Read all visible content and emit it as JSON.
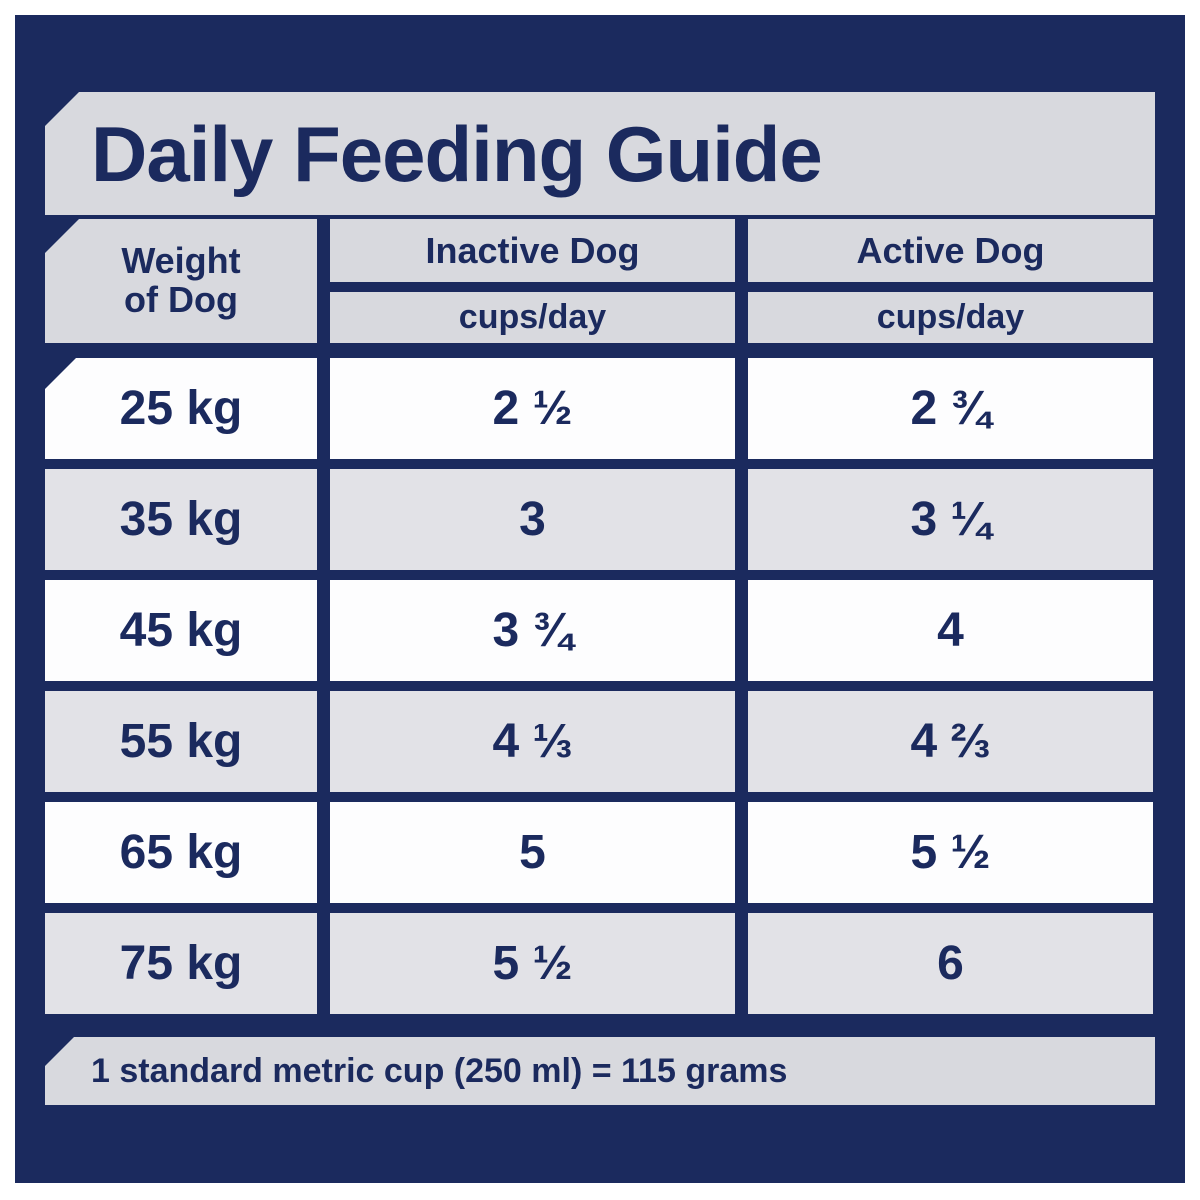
{
  "title": "Daily Feeding Guide",
  "header": {
    "weight_line1": "Weight",
    "weight_line2": "of Dog",
    "inactive_label": "Inactive Dog",
    "active_label": "Active Dog",
    "unit_label": "cups/day"
  },
  "rows": [
    {
      "weight": "25 kg",
      "inactive": "2 ½",
      "active": "2 ¾"
    },
    {
      "weight": "35 kg",
      "inactive": "3",
      "active": "3 ¼"
    },
    {
      "weight": "45 kg",
      "inactive": "3 ¾",
      "active": "4"
    },
    {
      "weight": "55 kg",
      "inactive": "4 ⅓",
      "active": "4 ⅔"
    },
    {
      "weight": "65 kg",
      "inactive": "5",
      "active": "5 ½"
    },
    {
      "weight": "75 kg",
      "inactive": "5 ½",
      "active": "6"
    }
  ],
  "footnote": "1 standard metric cup (250 ml) = 115 grams",
  "colors": {
    "navy": "#1b2a5e",
    "banner_gray": "#d8d9de",
    "row_gray": "#e2e2e7",
    "row_white": "#fdfdfe"
  }
}
